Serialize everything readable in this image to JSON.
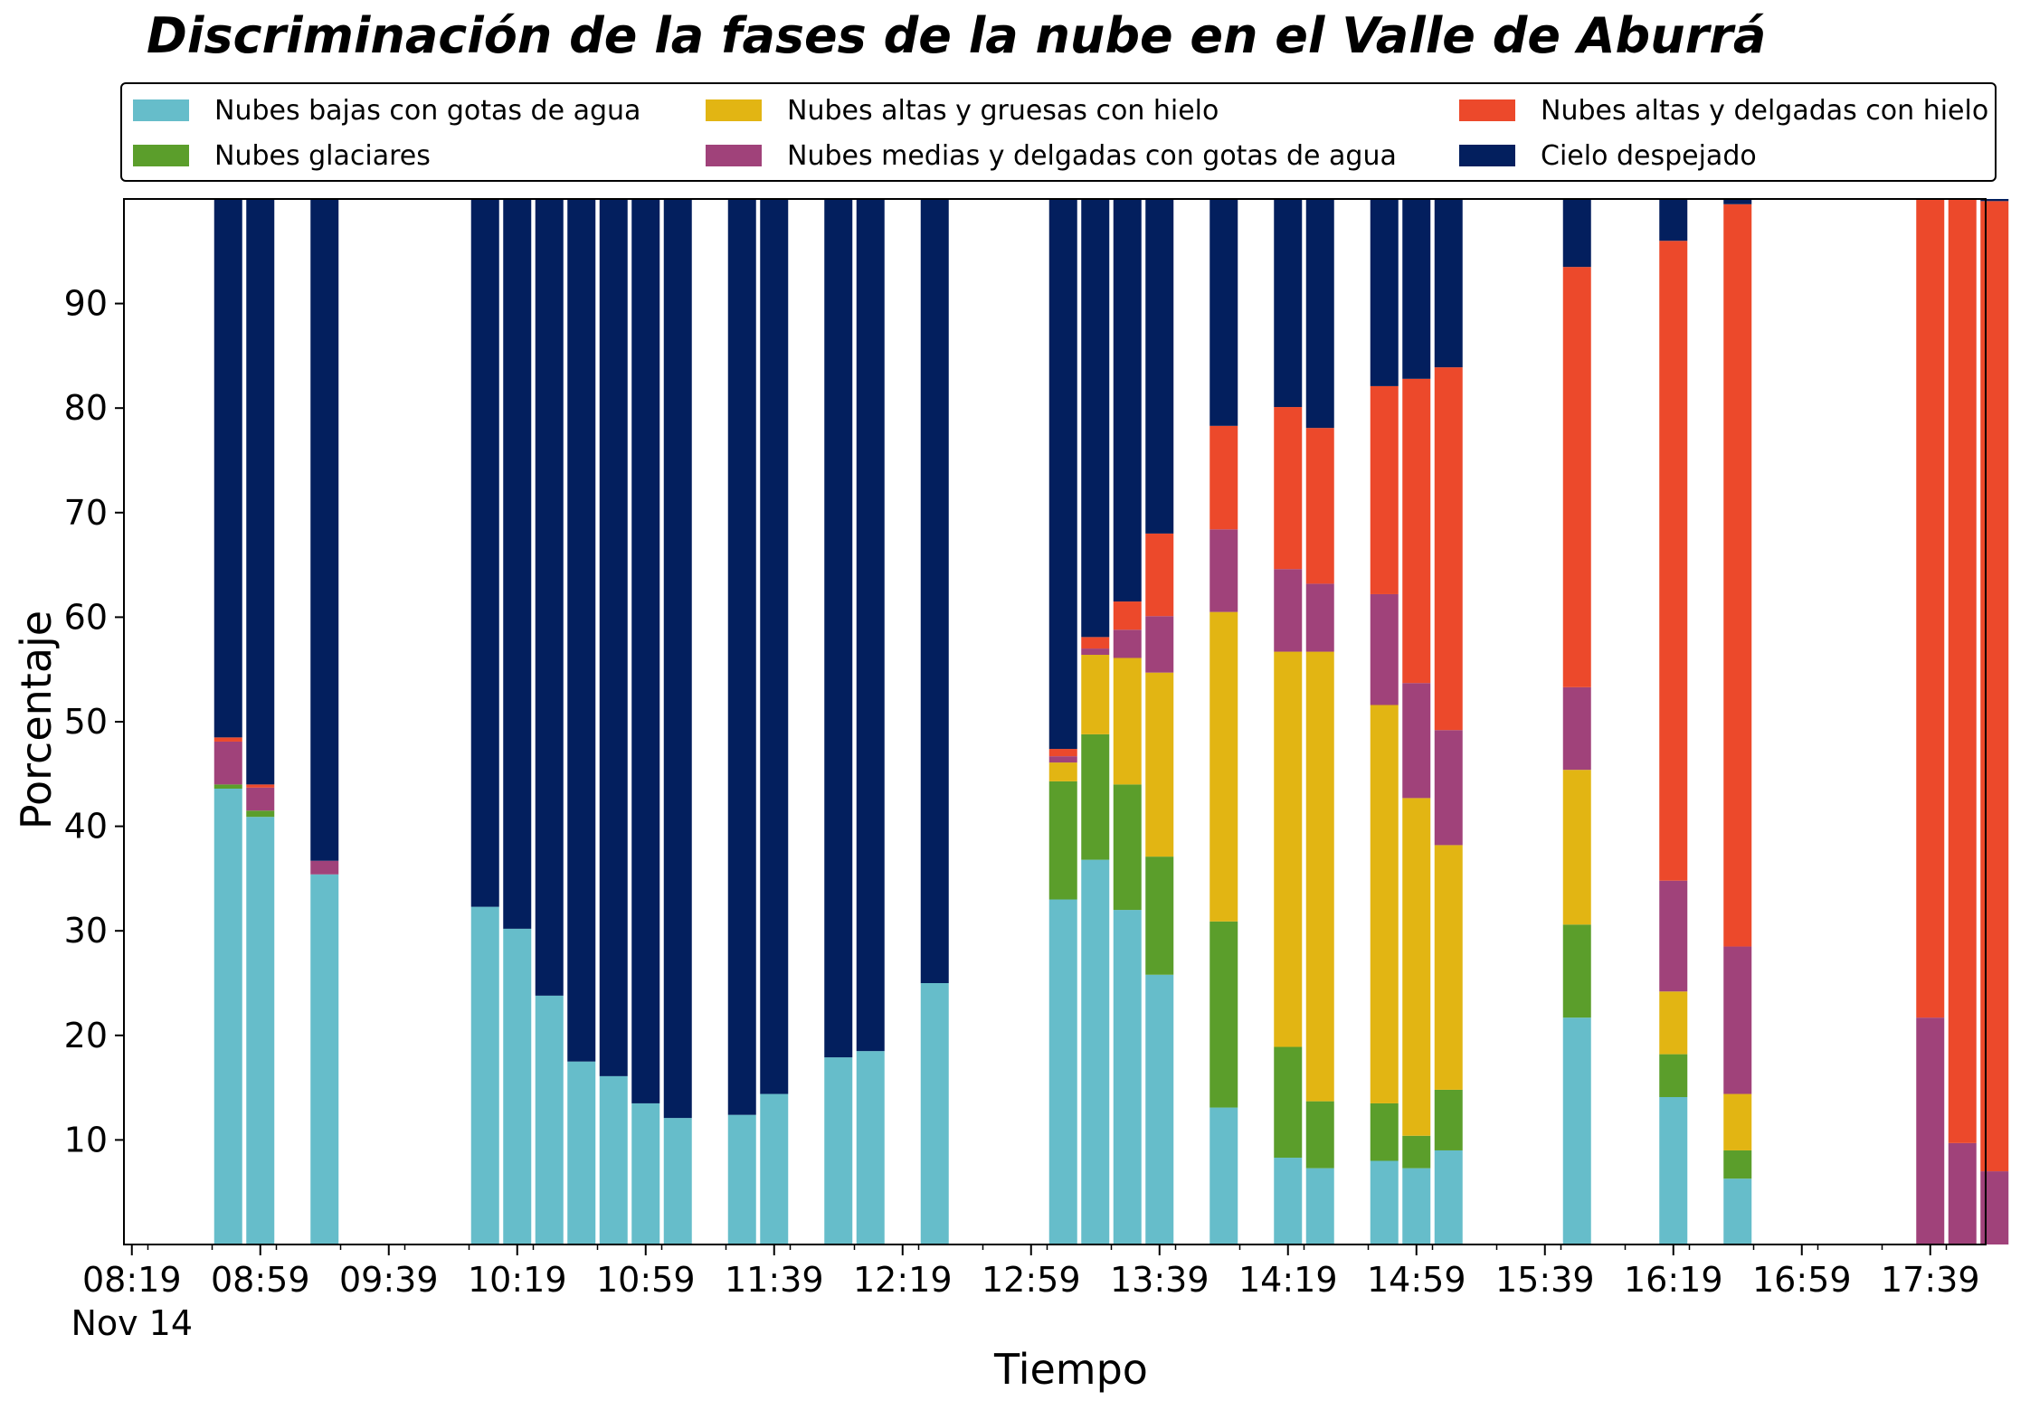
{
  "chart_data": {
    "type": "bar",
    "stacked": true,
    "title": "Discriminación de la fases de la nube en el Valle de Aburrá",
    "xlabel": "Tiempo",
    "ylabel": "Porcentaje",
    "ylim": [
      0,
      100
    ],
    "yticks": [
      10,
      20,
      30,
      40,
      50,
      60,
      70,
      80,
      90
    ],
    "xlim": [
      0,
      58
    ],
    "xticks": [
      {
        "pos": 0.5,
        "label": "08:19",
        "sublabel": "Nov 14"
      },
      {
        "pos": 4.5,
        "label": "08:59"
      },
      {
        "pos": 8.5,
        "label": "09:39"
      },
      {
        "pos": 12.5,
        "label": "10:19"
      },
      {
        "pos": 16.5,
        "label": "10:59"
      },
      {
        "pos": 20.5,
        "label": "11:39"
      },
      {
        "pos": 24.5,
        "label": "12:19"
      },
      {
        "pos": 28.5,
        "label": "12:59"
      },
      {
        "pos": 32.5,
        "label": "13:39"
      },
      {
        "pos": 36.5,
        "label": "14:19"
      },
      {
        "pos": 40.5,
        "label": "14:59"
      },
      {
        "pos": 44.5,
        "label": "15:39"
      },
      {
        "pos": 48.5,
        "label": "16:19"
      },
      {
        "pos": 52.5,
        "label": "16:59"
      },
      {
        "pos": 56.5,
        "label": "17:39"
      }
    ],
    "grid": false,
    "legend_position": "top",
    "series": [
      {
        "name": "Nubes bajas con gotas de agua",
        "color": "#66BDCA"
      },
      {
        "name": "Nubes glaciares",
        "color": "#5B9E2B"
      },
      {
        "name": "Nubes altas y gruesas con hielo",
        "color": "#E2B513"
      },
      {
        "name": "Nubes medias y delgadas con gotas de agua",
        "color": "#A0427A"
      },
      {
        "name": "Nubes altas y delgadas con hielo",
        "color": "#EC492B"
      },
      {
        "name": "Cielo despejado",
        "color": "#031F5E"
      }
    ],
    "bars": [
      {
        "x": 3,
        "values": [
          43.6,
          0.4,
          0,
          4.1,
          0.4,
          51.5
        ]
      },
      {
        "x": 4,
        "values": [
          40.9,
          0.6,
          0,
          2.2,
          0.3,
          56.0
        ]
      },
      {
        "x": 6,
        "values": [
          35.4,
          0,
          0,
          1.3,
          0,
          63.3
        ]
      },
      {
        "x": 11,
        "values": [
          32.3,
          0,
          0,
          0,
          0,
          67.7
        ]
      },
      {
        "x": 12,
        "values": [
          30.2,
          0,
          0,
          0,
          0,
          69.8
        ]
      },
      {
        "x": 13,
        "values": [
          23.8,
          0,
          0,
          0,
          0,
          76.2
        ]
      },
      {
        "x": 14,
        "values": [
          17.5,
          0,
          0,
          0,
          0,
          82.5
        ]
      },
      {
        "x": 15,
        "values": [
          16.1,
          0,
          0,
          0,
          0,
          83.9
        ]
      },
      {
        "x": 16,
        "values": [
          13.5,
          0,
          0,
          0,
          0,
          86.5
        ]
      },
      {
        "x": 17,
        "values": [
          12.1,
          0,
          0,
          0,
          0,
          87.9
        ]
      },
      {
        "x": 19,
        "values": [
          12.4,
          0,
          0,
          0,
          0,
          87.6
        ]
      },
      {
        "x": 20,
        "values": [
          14.4,
          0,
          0,
          0,
          0,
          85.6
        ]
      },
      {
        "x": 22,
        "values": [
          17.9,
          0,
          0,
          0,
          0,
          82.1
        ]
      },
      {
        "x": 23,
        "values": [
          18.5,
          0,
          0,
          0,
          0,
          81.5
        ]
      },
      {
        "x": 25,
        "values": [
          25.0,
          0,
          0,
          0,
          0,
          75.0
        ]
      },
      {
        "x": 29,
        "values": [
          33.0,
          11.3,
          1.8,
          0.6,
          0.7,
          52.6
        ]
      },
      {
        "x": 30,
        "values": [
          36.8,
          12.0,
          7.6,
          0.6,
          1.1,
          41.9
        ]
      },
      {
        "x": 31,
        "values": [
          32.0,
          12.0,
          12.1,
          2.7,
          2.7,
          38.5
        ]
      },
      {
        "x": 32,
        "values": [
          25.8,
          11.3,
          17.6,
          5.4,
          7.9,
          32.0
        ]
      },
      {
        "x": 34,
        "values": [
          13.1,
          17.8,
          29.6,
          7.9,
          9.9,
          21.7
        ]
      },
      {
        "x": 36,
        "values": [
          8.3,
          10.6,
          37.8,
          7.9,
          15.5,
          19.9
        ]
      },
      {
        "x": 37,
        "values": [
          7.3,
          6.4,
          43.0,
          6.5,
          14.9,
          21.9
        ]
      },
      {
        "x": 39,
        "values": [
          8.0,
          5.5,
          38.1,
          10.6,
          19.9,
          17.9
        ]
      },
      {
        "x": 40,
        "values": [
          7.3,
          3.1,
          32.3,
          11.0,
          29.1,
          17.2
        ]
      },
      {
        "x": 41,
        "values": [
          9.0,
          5.8,
          23.4,
          11.0,
          34.7,
          16.1
        ]
      },
      {
        "x": 45,
        "values": [
          21.7,
          8.9,
          14.8,
          7.9,
          40.2,
          6.5
        ]
      },
      {
        "x": 48,
        "values": [
          14.1,
          4.1,
          6.0,
          10.6,
          61.2,
          4.0
        ]
      },
      {
        "x": 50,
        "values": [
          6.3,
          2.7,
          5.4,
          14.1,
          71.0,
          0.5
        ]
      },
      {
        "x": 56,
        "values": [
          0,
          0,
          0,
          21.7,
          78.3,
          0
        ]
      },
      {
        "x": 57,
        "values": [
          0,
          0,
          0,
          9.7,
          90.3,
          0
        ]
      },
      {
        "x": 58,
        "values": [
          0,
          0,
          0,
          7.0,
          92.8,
          0.2
        ]
      }
    ]
  }
}
